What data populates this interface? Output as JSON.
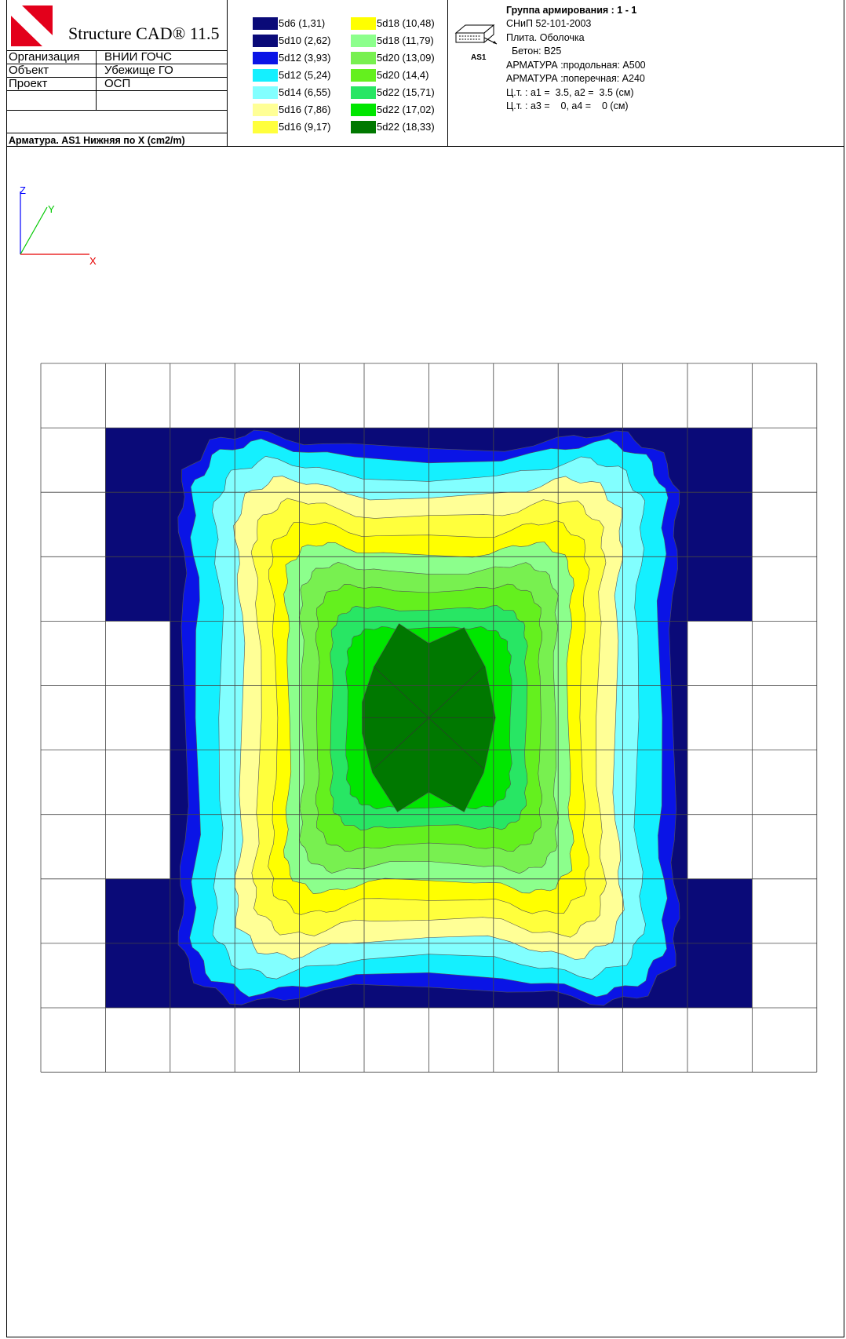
{
  "app": {
    "title": "Structure CAD® 11.5",
    "logo_color": "#e3001b"
  },
  "info": [
    {
      "label": "Организация",
      "value": "ВНИИ ГОЧС"
    },
    {
      "label": "Объект",
      "value": "Убежище ГО"
    },
    {
      "label": "Проект",
      "value": "ОСП"
    }
  ],
  "caption": "Арматура. AS1 Нижняя по X (cm2/m)",
  "legend": [
    {
      "label": "5d6 (1,31)",
      "color": "#0a0a78"
    },
    {
      "label": "5d10 (2,62)",
      "color": "#0a0a78"
    },
    {
      "label": "5d12 (3,93)",
      "color": "#0a14e6"
    },
    {
      "label": "5d12 (5,24)",
      "color": "#14f0ff"
    },
    {
      "label": "5d14 (6,55)",
      "color": "#82ffff"
    },
    {
      "label": "5d16 (7,86)",
      "color": "#ffff96"
    },
    {
      "label": "5d16 (9,17)",
      "color": "#ffff3c"
    },
    {
      "label": "5d18 (10,48)",
      "color": "#ffff00"
    },
    {
      "label": "5d18 (11,79)",
      "color": "#8cff8c"
    },
    {
      "label": "5d20 (13,09)",
      "color": "#78f050"
    },
    {
      "label": "5d20 (14,4)",
      "color": "#64f01e"
    },
    {
      "label": "5d22 (15,71)",
      "color": "#28e664"
    },
    {
      "label": "5d22 (17,02)",
      "color": "#00e600"
    },
    {
      "label": "5d22 (18,33)",
      "color": "#007800"
    }
  ],
  "group": {
    "title": "Группа армирования : 1 - 1",
    "icon_label": "AS1",
    "lines": [
      "СНиП 52-101-2003",
      "Плита. Оболочка",
      "  Бетон: B25",
      "АРМАТУРА :продольная: A500",
      "АРМАТУРА :поперечная: A240",
      "Ц.т. : a1 =  3.5, a2 =  3.5 (см)",
      "Ц.т. : a3 =    0, a4 =    0 (см)"
    ]
  },
  "axes": {
    "z": "Z",
    "y": "Y",
    "x": "X"
  }
}
